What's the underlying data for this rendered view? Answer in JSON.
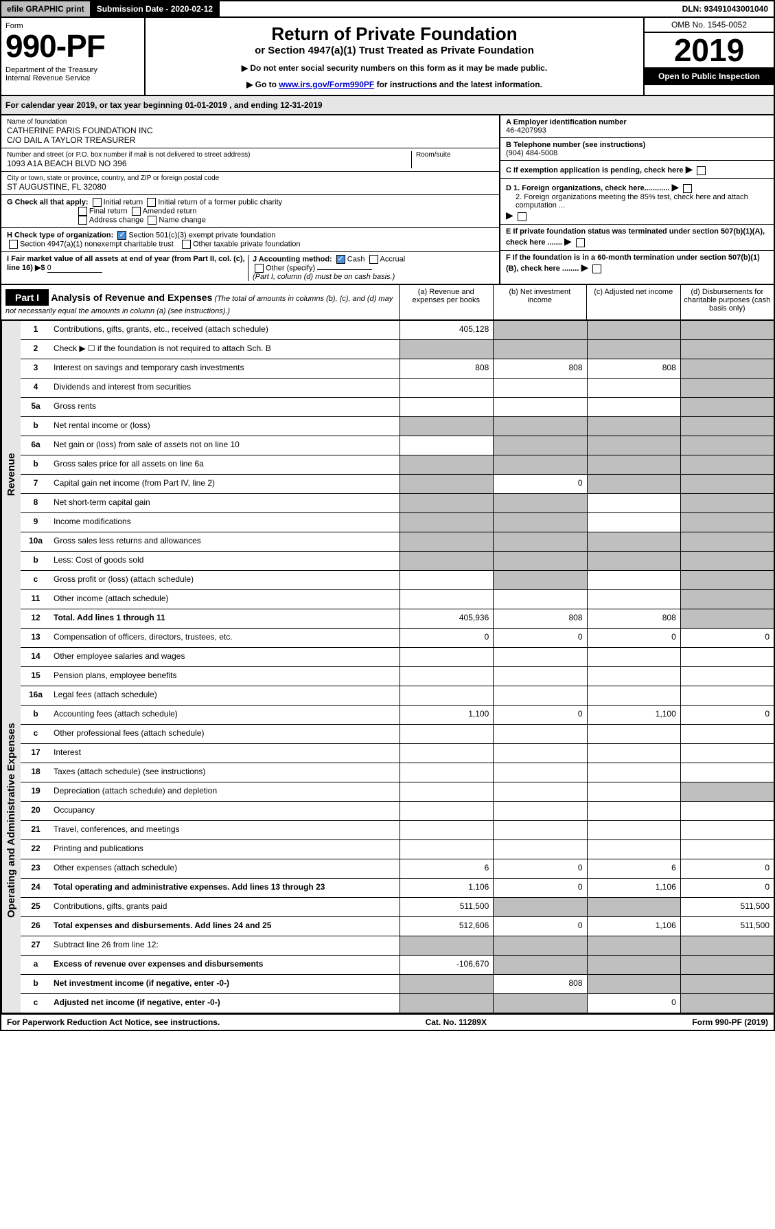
{
  "topbar": {
    "efile": "efile GRAPHIC print",
    "subdate_label": "Submission Date - 2020-02-12",
    "dln": "DLN: 93491043001040"
  },
  "header": {
    "form_label": "Form",
    "form_number": "990-PF",
    "dept": "Department of the Treasury\nInternal Revenue Service",
    "title": "Return of Private Foundation",
    "subtitle": "or Section 4947(a)(1) Trust Treated as Private Foundation",
    "note1": "▶ Do not enter social security numbers on this form as it may be made public.",
    "note2_prefix": "▶ Go to ",
    "note2_link": "www.irs.gov/Form990PF",
    "note2_suffix": " for instructions and the latest information.",
    "omb": "OMB No. 1545-0052",
    "year": "2019",
    "open": "Open to Public Inspection"
  },
  "yearline": "For calendar year 2019, or tax year beginning 01-01-2019                     , and ending 12-31-2019",
  "info": {
    "name_label": "Name of foundation",
    "name": "CATHERINE PARIS FOUNDATION INC\nC/O DAIL A TAYLOR TREASURER",
    "addr_label": "Number and street (or P.O. box number if mail is not delivered to street address)",
    "addr": "1093 A1A BEACH BLVD NO 396",
    "room_label": "Room/suite",
    "city_label": "City or town, state or province, country, and ZIP or foreign postal code",
    "city": "ST AUGUSTINE, FL  32080",
    "ein_label": "A Employer identification number",
    "ein": "46-4207993",
    "phone_label": "B Telephone number (see instructions)",
    "phone": "(904) 484-5008",
    "c_label": "C If exemption application is pending, check here",
    "d1": "D 1. Foreign organizations, check here............",
    "d2": "2. Foreign organizations meeting the 85% test, check here and attach computation ...",
    "e_label": "E  If private foundation status was terminated under section 507(b)(1)(A), check here .......",
    "f_label": "F  If the foundation is in a 60-month termination under section 507(b)(1)(B), check here ........"
  },
  "checks": {
    "g_label": "G Check all that apply:",
    "g_opts": [
      "Initial return",
      "Initial return of a former public charity",
      "Final return",
      "Amended return",
      "Address change",
      "Name change"
    ],
    "h_label": "H Check type of organization:",
    "h_501c3": "Section 501(c)(3) exempt private foundation",
    "h_4947": "Section 4947(a)(1) nonexempt charitable trust",
    "h_other": "Other taxable private foundation",
    "i_label": "I Fair market value of all assets at end of year (from Part II, col. (c), line 16) ▶$ ",
    "i_val": "0",
    "j_label": "J Accounting method:",
    "j_cash": "Cash",
    "j_accrual": "Accrual",
    "j_other": "Other (specify)",
    "j_note": "(Part I, column (d) must be on cash basis.)"
  },
  "part1": {
    "label": "Part I",
    "title": "Analysis of Revenue and Expenses",
    "title_note": " (The total of amounts in columns (b), (c), and (d) may not necessarily equal the amounts in column (a) (see instructions).)",
    "col_a": "(a)   Revenue and expenses per books",
    "col_b": "(b)  Net investment income",
    "col_c": "(c)  Adjusted net income",
    "col_d": "(d)  Disbursements for charitable purposes (cash basis only)"
  },
  "vlabels": {
    "rev": "Revenue",
    "exp": "Operating and Administrative Expenses"
  },
  "rows": [
    {
      "n": "1",
      "d": "Contributions, gifts, grants, etc., received (attach schedule)",
      "a": "405,128",
      "bg": [
        "",
        "g",
        "g",
        "g"
      ]
    },
    {
      "n": "2",
      "d": "Check ▶ ☐ if the foundation is not required to attach Sch. B",
      "bg": [
        "g",
        "g",
        "g",
        "g"
      ]
    },
    {
      "n": "3",
      "d": "Interest on savings and temporary cash investments",
      "a": "808",
      "b": "808",
      "c": "808",
      "bg": [
        "",
        "",
        "",
        "g"
      ]
    },
    {
      "n": "4",
      "d": "Dividends and interest from securities",
      "bg": [
        "",
        "",
        "",
        "g"
      ]
    },
    {
      "n": "5a",
      "d": "Gross rents",
      "bg": [
        "",
        "",
        "",
        "g"
      ]
    },
    {
      "n": "b",
      "d": "Net rental income or (loss)",
      "bg": [
        "g",
        "g",
        "g",
        "g"
      ]
    },
    {
      "n": "6a",
      "d": "Net gain or (loss) from sale of assets not on line 10",
      "bg": [
        "",
        "g",
        "g",
        "g"
      ]
    },
    {
      "n": "b",
      "d": "Gross sales price for all assets on line 6a",
      "bg": [
        "g",
        "g",
        "g",
        "g"
      ]
    },
    {
      "n": "7",
      "d": "Capital gain net income (from Part IV, line 2)",
      "b": "0",
      "bg": [
        "g",
        "",
        "g",
        "g"
      ]
    },
    {
      "n": "8",
      "d": "Net short-term capital gain",
      "bg": [
        "g",
        "g",
        "",
        "g"
      ]
    },
    {
      "n": "9",
      "d": "Income modifications",
      "bg": [
        "g",
        "g",
        "",
        "g"
      ]
    },
    {
      "n": "10a",
      "d": "Gross sales less returns and allowances",
      "bg": [
        "g",
        "g",
        "g",
        "g"
      ]
    },
    {
      "n": "b",
      "d": "Less: Cost of goods sold",
      "bg": [
        "g",
        "g",
        "g",
        "g"
      ]
    },
    {
      "n": "c",
      "d": "Gross profit or (loss) (attach schedule)",
      "bg": [
        "",
        "g",
        "",
        "g"
      ]
    },
    {
      "n": "11",
      "d": "Other income (attach schedule)",
      "bg": [
        "",
        "",
        "",
        "g"
      ]
    },
    {
      "n": "12",
      "d": "Total. Add lines 1 through 11",
      "a": "405,936",
      "b": "808",
      "c": "808",
      "bold": true,
      "bg": [
        "",
        "",
        "",
        "g"
      ]
    },
    {
      "n": "13",
      "d": "Compensation of officers, directors, trustees, etc.",
      "a": "0",
      "b": "0",
      "c": "0",
      "dd": "0"
    },
    {
      "n": "14",
      "d": "Other employee salaries and wages"
    },
    {
      "n": "15",
      "d": "Pension plans, employee benefits"
    },
    {
      "n": "16a",
      "d": "Legal fees (attach schedule)"
    },
    {
      "n": "b",
      "d": "Accounting fees (attach schedule)",
      "a": "1,100",
      "b": "0",
      "c": "1,100",
      "dd": "0"
    },
    {
      "n": "c",
      "d": "Other professional fees (attach schedule)"
    },
    {
      "n": "17",
      "d": "Interest"
    },
    {
      "n": "18",
      "d": "Taxes (attach schedule) (see instructions)"
    },
    {
      "n": "19",
      "d": "Depreciation (attach schedule) and depletion",
      "bg": [
        "",
        "",
        "",
        "g"
      ]
    },
    {
      "n": "20",
      "d": "Occupancy"
    },
    {
      "n": "21",
      "d": "Travel, conferences, and meetings"
    },
    {
      "n": "22",
      "d": "Printing and publications"
    },
    {
      "n": "23",
      "d": "Other expenses (attach schedule)",
      "a": "6",
      "b": "0",
      "c": "6",
      "dd": "0"
    },
    {
      "n": "24",
      "d": "Total operating and administrative expenses. Add lines 13 through 23",
      "a": "1,106",
      "b": "0",
      "c": "1,106",
      "dd": "0",
      "bold": true
    },
    {
      "n": "25",
      "d": "Contributions, gifts, grants paid",
      "a": "511,500",
      "dd": "511,500",
      "bg": [
        "",
        "g",
        "g",
        ""
      ]
    },
    {
      "n": "26",
      "d": "Total expenses and disbursements. Add lines 24 and 25",
      "a": "512,606",
      "b": "0",
      "c": "1,106",
      "dd": "511,500",
      "bold": true
    },
    {
      "n": "27",
      "d": "Subtract line 26 from line 12:",
      "bg": [
        "g",
        "g",
        "g",
        "g"
      ]
    },
    {
      "n": "a",
      "d": "Excess of revenue over expenses and disbursements",
      "a": "-106,670",
      "bold": true,
      "bg": [
        "",
        "g",
        "g",
        "g"
      ]
    },
    {
      "n": "b",
      "d": "Net investment income (if negative, enter -0-)",
      "b": "808",
      "bold": true,
      "bg": [
        "g",
        "",
        "g",
        "g"
      ]
    },
    {
      "n": "c",
      "d": "Adjusted net income (if negative, enter -0-)",
      "c": "0",
      "bold": true,
      "bg": [
        "g",
        "g",
        "",
        "g"
      ]
    }
  ],
  "footer": {
    "left": "For Paperwork Reduction Act Notice, see instructions.",
    "mid": "Cat. No. 11289X",
    "right": "Form 990-PF (2019)"
  }
}
